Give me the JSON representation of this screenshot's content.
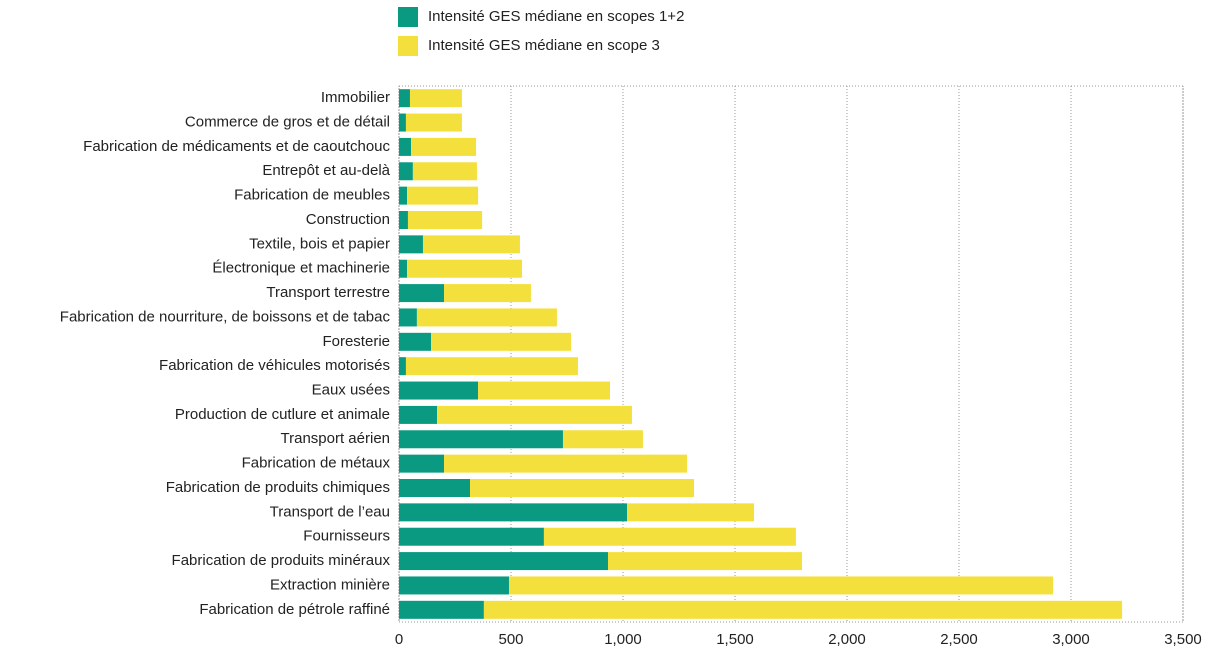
{
  "chart_data": {
    "type": "stacked-barh",
    "categories": [
      "Immobilier",
      "Commerce de gros et de détail",
      "Fabrication de médicaments et de caoutchouc",
      "Entrepôt et au-delà",
      "Fabrication de meubles",
      "Construction",
      "Textile, bois et papier",
      "Électronique et machinerie",
      "Transport terrestre",
      "Fabrication de nourriture, de boissons et de tabac",
      "Foresterie",
      "Fabrication de véhicules motorisés",
      "Eaux usées",
      "Production de cutlure et animale",
      "Transport aérien",
      "Fabrication de métaux",
      "Fabrication de produits chimiques",
      "Transport de l’eau",
      "Fournisseurs",
      "Fabrication de produits minéraux",
      "Extraction minière",
      "Fabrication de pétrole raffiné"
    ],
    "series": [
      {
        "name": "Intensité GES médiane en scopes 1+2",
        "color": "#0a9a82",
        "values": [
          49,
          31,
          54,
          62,
          36,
          40,
          107,
          36,
          201,
          80,
          143,
          31,
          353,
          170,
          732,
          201,
          317,
          1018,
          647,
          933,
          491,
          379
        ]
      },
      {
        "name": "Intensité GES médiane en scope 3",
        "color": "#f4e03c",
        "values": [
          232,
          250,
          290,
          286,
          317,
          331,
          433,
          513,
          388,
          625,
          625,
          768,
          589,
          870,
          357,
          1085,
          1000,
          567,
          1125,
          866,
          2429,
          2849
        ]
      }
    ],
    "xlim": [
      0,
      3500
    ],
    "xticks": [
      0,
      500,
      {
        "value": 1000,
        "label": "1,000"
      },
      {
        "value": 1500,
        "label": "1,500"
      },
      {
        "value": 2000,
        "label": "2,000"
      },
      {
        "value": 2500,
        "label": "2,500"
      },
      {
        "value": 3000,
        "label": "3,000"
      },
      {
        "value": 3500,
        "label": "3,500"
      }
    ],
    "grid": true
  }
}
